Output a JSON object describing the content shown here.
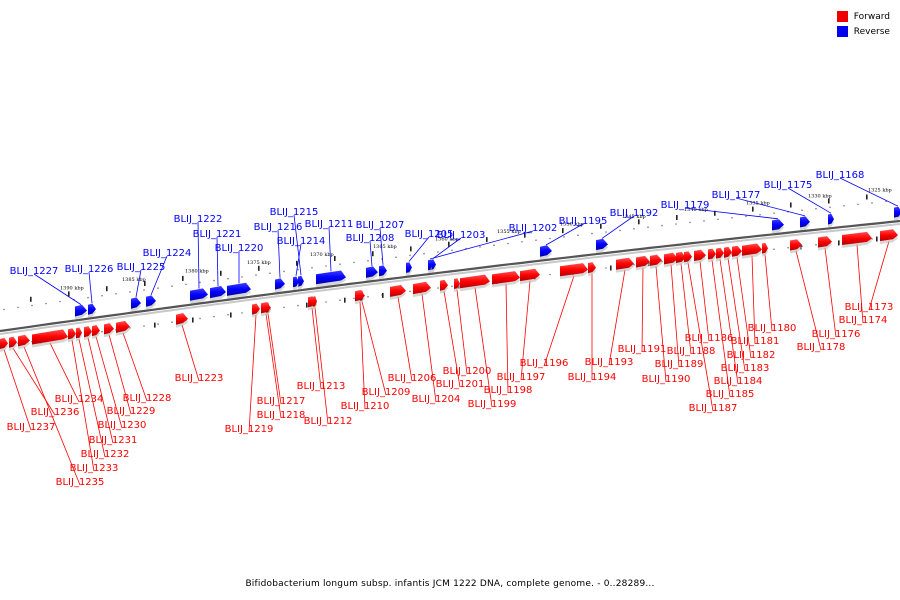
{
  "legend": {
    "forward_label": "Forward",
    "reverse_label": "Reverse",
    "forward_color": "#ff0000",
    "reverse_color": "#0000ff"
  },
  "caption": "Bifidobacterium longum subsp. infantis JCM 1222 DNA, complete genome. - 0..28289...",
  "ruler_marks": [
    "1390 kbp",
    "1385 kbp",
    "1380 kbp",
    "1375 kbp",
    "1370 kbp",
    "1365 kbp",
    "1360 kbp",
    "1355 kbp",
    "1350 kbp",
    "1345 kbp",
    "1340 kbp",
    "1335 kbp",
    "1330 kbp",
    "1325 kbp"
  ],
  "reverse_genes": [
    "BLIJ_1227",
    "BLIJ_1226",
    "BLIJ_1225",
    "BLIJ_1224",
    "BLIJ_1222",
    "BLIJ_1221",
    "BLIJ_1220",
    "BLIJ_1216",
    "BLIJ_1215",
    "BLIJ_1214",
    "BLIJ_1211",
    "BLIJ_1208",
    "BLIJ_1207",
    "BLIJ_1205",
    "BLIJ_1203",
    "BLIJ_1202",
    "BLIJ_1195",
    "BLIJ_1192",
    "BLIJ_1179",
    "BLIJ_1177",
    "BLIJ_1175",
    "BLIJ_1168"
  ],
  "forward_genes": [
    "BLIJ_1237",
    "BLIJ_1236",
    "BLIJ_1235",
    "BLIJ_1234",
    "BLIJ_1233",
    "BLIJ_1232",
    "BLIJ_1231",
    "BLIJ_1230",
    "BLIJ_1229",
    "BLIJ_1228",
    "BLIJ_1223",
    "BLIJ_1219",
    "BLIJ_1218",
    "BLIJ_1217",
    "BLIJ_1213",
    "BLIJ_1212",
    "BLIJ_1210",
    "BLIJ_1209",
    "BLIJ_1206",
    "BLIJ_1204",
    "BLIJ_1201",
    "BLIJ_1200",
    "BLIJ_1199",
    "BLIJ_1198",
    "BLIJ_1197",
    "BLIJ_1196",
    "BLIJ_1194",
    "BLIJ_1193",
    "BLIJ_1191",
    "BLIJ_1190",
    "BLIJ_1189",
    "BLIJ_1188",
    "BLIJ_1187",
    "BLIJ_1186",
    "BLIJ_1185",
    "BLIJ_1184",
    "BLIJ_1183",
    "BLIJ_1182",
    "BLIJ_1181",
    "BLIJ_1180",
    "BLIJ_1178",
    "BLIJ_1176",
    "BLIJ_1174",
    "BLIJ_1173"
  ]
}
